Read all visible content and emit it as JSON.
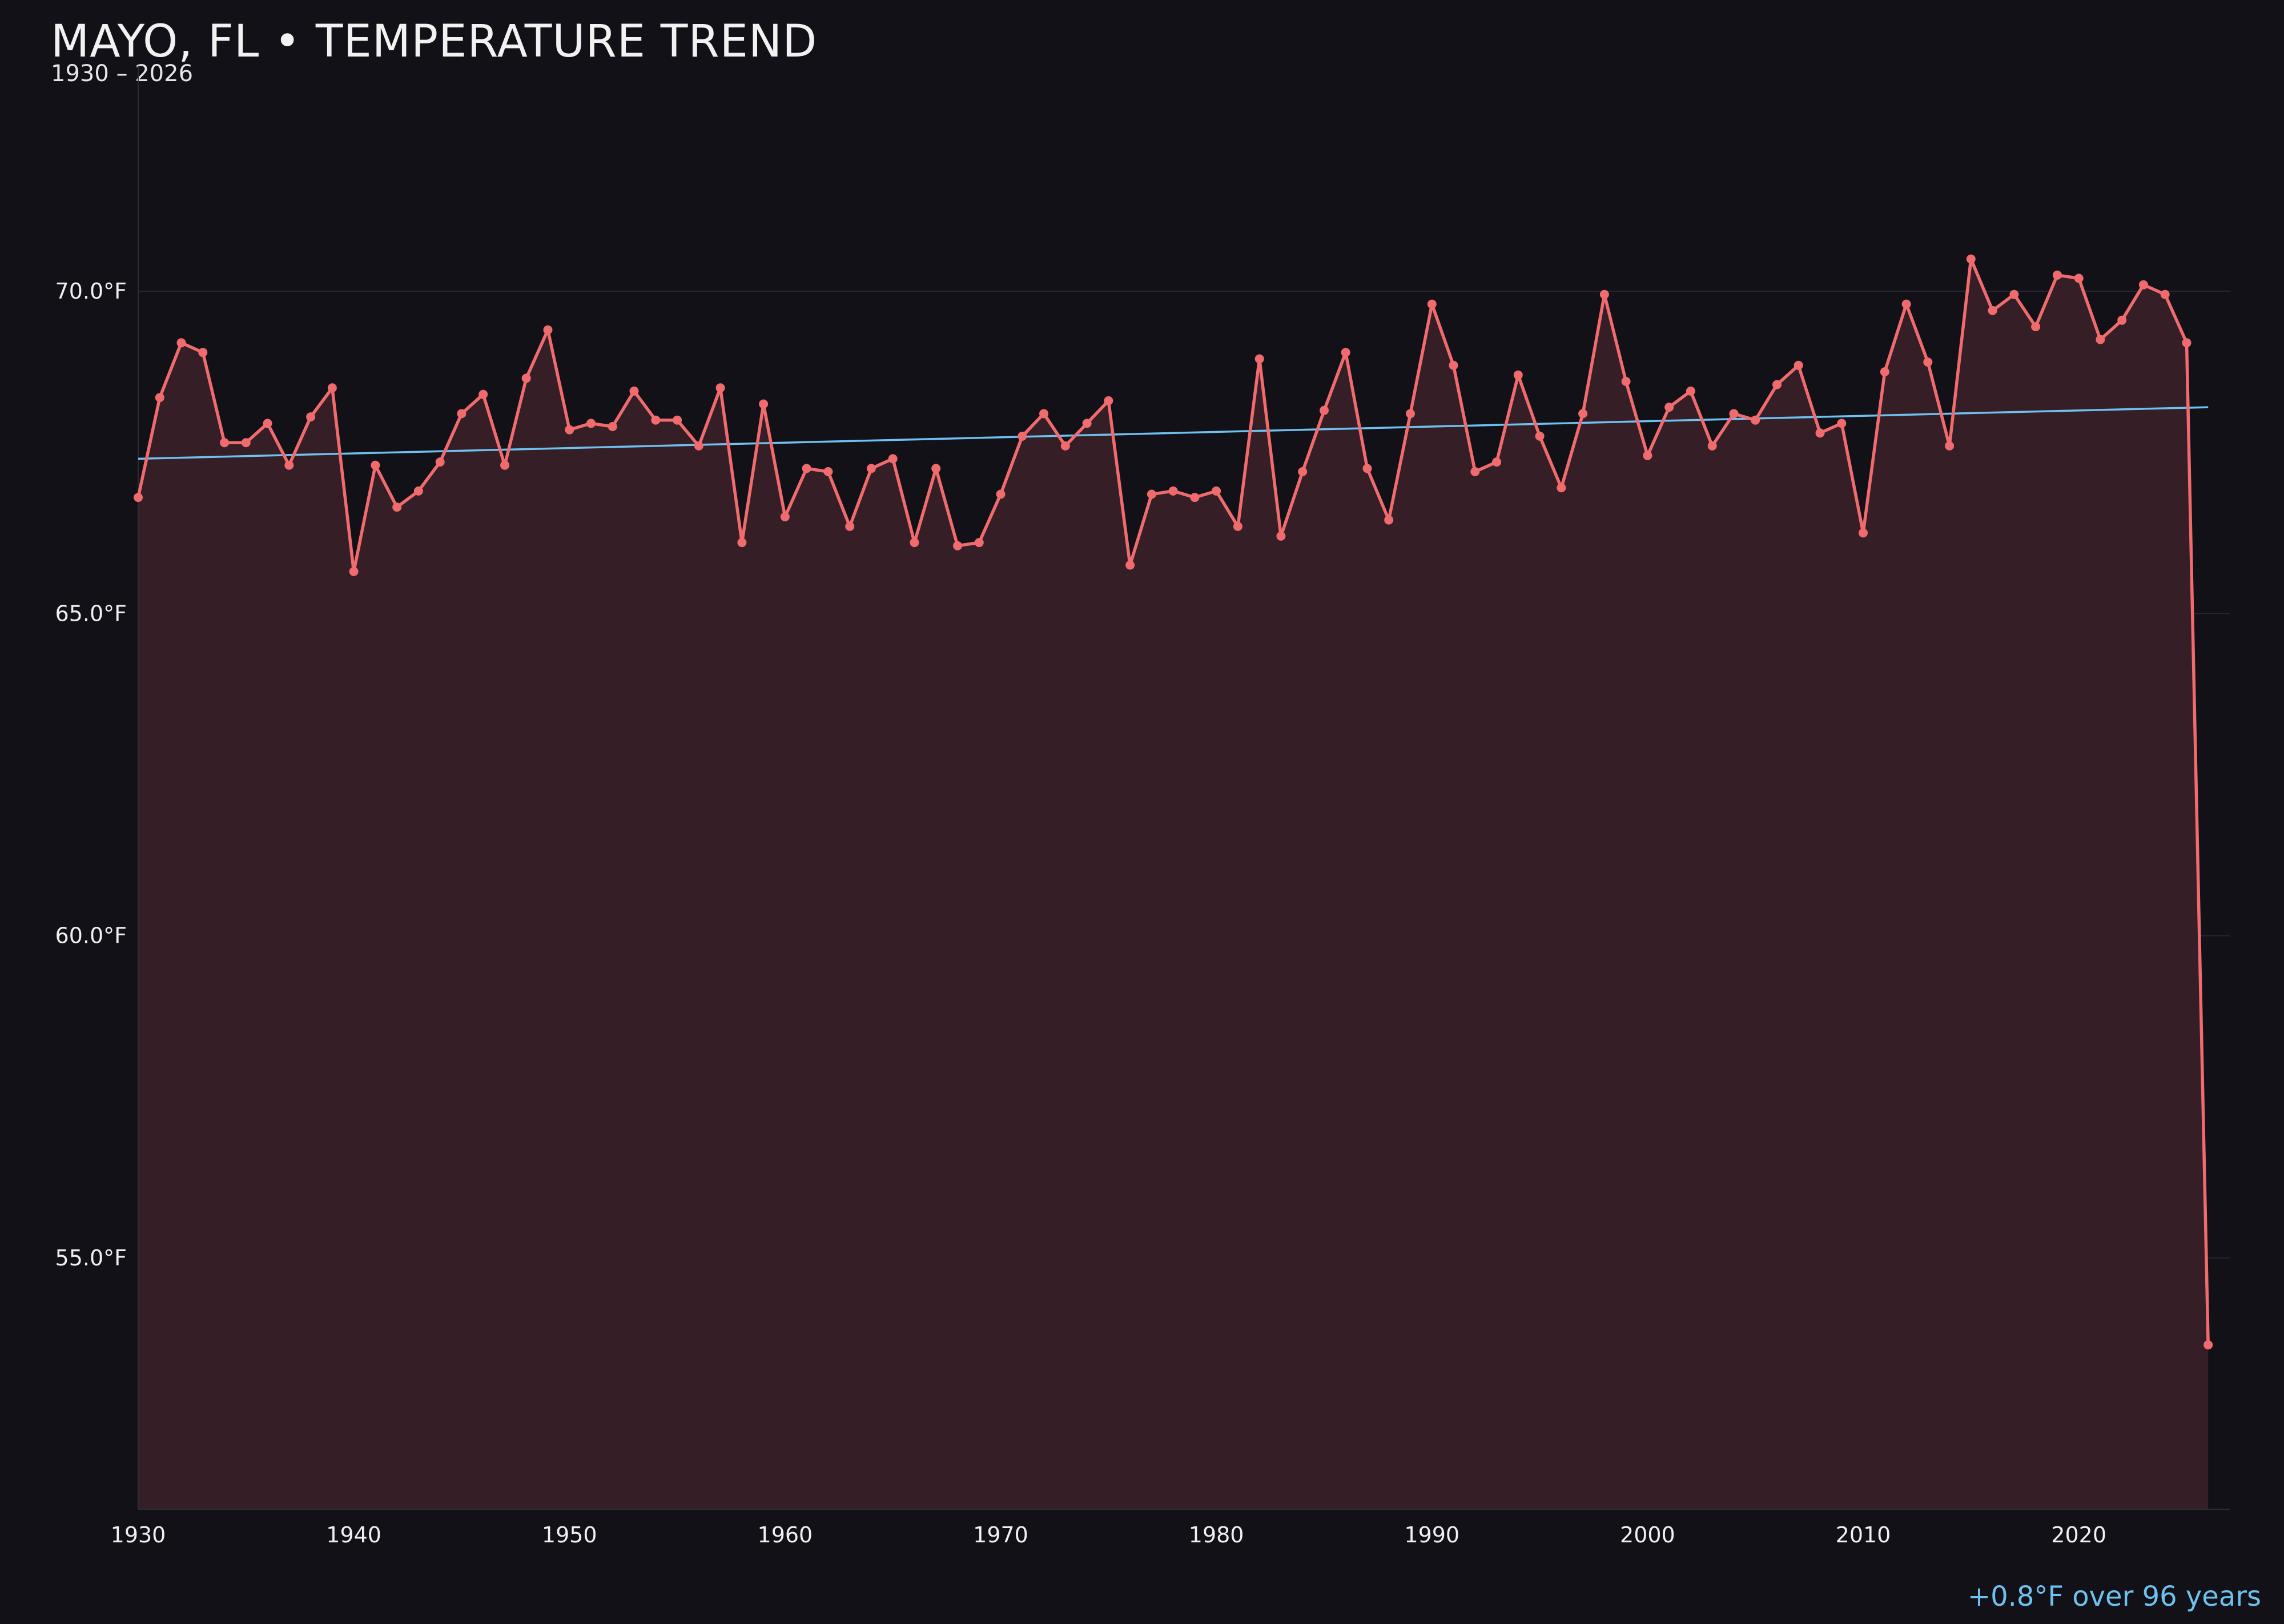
{
  "chart_data": {
    "type": "line",
    "title": "MAYO, FL • TEMPERATURE TREND",
    "subtitle": "1930 – 2026",
    "xlabel": "",
    "ylabel": "",
    "xlim": [
      1930,
      2027
    ],
    "ylim": [
      51.1,
      73.5
    ],
    "x_ticks": [
      1930,
      1940,
      1950,
      1960,
      1970,
      1980,
      1990,
      2000,
      2010,
      2020
    ],
    "y_ticks": [
      55.0,
      60.0,
      65.0,
      70.0
    ],
    "y_unit": "°F",
    "grid": "horizontal",
    "series": [
      {
        "color": "#f06b6e",
        "fill": "#351e25",
        "x": [
          1930,
          1931,
          1932,
          1933,
          1934,
          1935,
          1936,
          1937,
          1938,
          1939,
          1940,
          1941,
          1942,
          1943,
          1944,
          1945,
          1946,
          1947,
          1948,
          1949,
          1950,
          1951,
          1952,
          1953,
          1954,
          1955,
          1956,
          1957,
          1958,
          1959,
          1960,
          1961,
          1962,
          1963,
          1964,
          1965,
          1966,
          1967,
          1968,
          1969,
          1970,
          1971,
          1972,
          1973,
          1974,
          1975,
          1976,
          1977,
          1978,
          1979,
          1980,
          1981,
          1982,
          1983,
          1984,
          1985,
          1986,
          1987,
          1988,
          1989,
          1990,
          1991,
          1992,
          1993,
          1994,
          1995,
          1996,
          1997,
          1998,
          1999,
          2000,
          2001,
          2002,
          2003,
          2004,
          2005,
          2006,
          2007,
          2008,
          2009,
          2010,
          2011,
          2012,
          2013,
          2014,
          2015,
          2016,
          2017,
          2018,
          2019,
          2020,
          2021,
          2022,
          2023,
          2024,
          2025,
          2026
        ],
        "values": [
          66.8,
          68.35,
          69.2,
          69.05,
          67.65,
          67.65,
          67.95,
          67.3,
          68.05,
          68.5,
          65.65,
          67.3,
          66.65,
          66.9,
          67.35,
          68.1,
          68.4,
          67.3,
          68.65,
          69.4,
          67.85,
          67.95,
          67.9,
          68.45,
          68.0,
          68.0,
          67.6,
          68.5,
          66.1,
          68.25,
          66.5,
          67.25,
          67.2,
          66.35,
          67.25,
          67.4,
          66.1,
          67.25,
          66.05,
          66.1,
          66.85,
          67.75,
          68.1,
          67.6,
          67.95,
          68.3,
          65.75,
          66.85,
          66.9,
          66.8,
          66.9,
          66.35,
          68.95,
          66.2,
          67.2,
          68.15,
          69.05,
          67.25,
          66.45,
          68.1,
          69.8,
          68.85,
          67.2,
          67.35,
          68.7,
          67.75,
          66.95,
          68.1,
          69.95,
          68.6,
          67.45,
          68.2,
          68.45,
          67.6,
          68.1,
          68.0,
          68.55,
          68.85,
          67.8,
          67.95,
          66.25,
          68.75,
          69.8,
          68.9,
          67.6,
          70.5,
          69.7,
          69.95,
          69.45,
          70.25,
          70.2,
          69.25,
          69.55,
          70.1,
          69.95,
          69.2,
          53.65
        ]
      },
      {
        "color": "#6fc1f0",
        "x": [
          1930,
          2026
        ],
        "values": [
          67.4,
          68.2
        ]
      }
    ],
    "annotation": {
      "text": "+0.8°F over 96 years",
      "color": "#6fc1f0"
    }
  }
}
